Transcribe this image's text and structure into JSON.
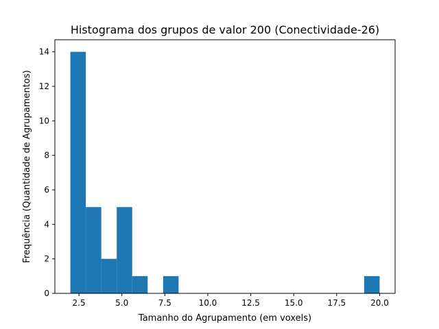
{
  "chart_data": {
    "type": "bar",
    "title": "Histograma dos grupos de valor 200 (Conectividade-26)",
    "xlabel": "Tamanho do Agrupamento (em voxels)",
    "ylabel": "Frequência (Quantidade de Agrupamentos)",
    "bin_edges": [
      2.0,
      2.9,
      3.8,
      4.7,
      5.6,
      6.5,
      7.4,
      8.3,
      9.2,
      10.1,
      11.0,
      11.9,
      12.8,
      13.7,
      14.6,
      15.5,
      16.4,
      17.3,
      18.2,
      19.1,
      20.0
    ],
    "values": [
      14,
      5,
      2,
      5,
      1,
      0,
      1,
      0,
      0,
      0,
      0,
      0,
      0,
      0,
      0,
      0,
      0,
      0,
      0,
      1
    ],
    "xlim": [
      1.1,
      20.9
    ],
    "ylim": [
      0,
      14.7
    ],
    "xticks": [
      2.5,
      5.0,
      7.5,
      10.0,
      12.5,
      15.0,
      17.5,
      20.0
    ],
    "xtick_labels": [
      "2.5",
      "5.0",
      "7.5",
      "10.0",
      "12.5",
      "15.0",
      "17.5",
      "20.0"
    ],
    "yticks": [
      0,
      2,
      4,
      6,
      8,
      10,
      12,
      14
    ],
    "ytick_labels": [
      "0",
      "2",
      "4",
      "6",
      "8",
      "10",
      "12",
      "14"
    ],
    "bar_color": "#1f77b4",
    "grid": false
  }
}
